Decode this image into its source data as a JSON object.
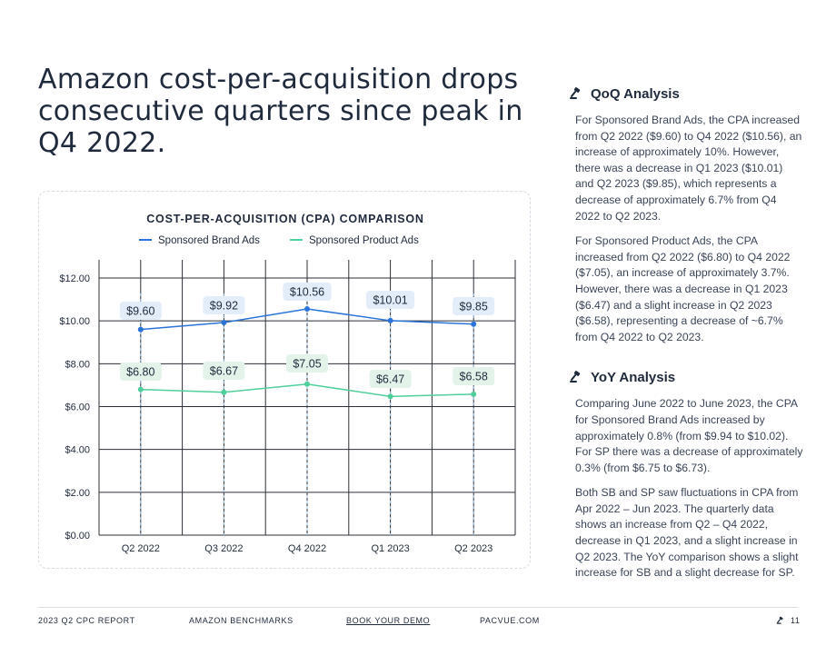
{
  "headline": "Amazon cost-per-acquisition drops consecutive quarters since peak in Q4 2022.",
  "chart_data": {
    "type": "line",
    "title": "COST-PER-ACQUISITION (CPA) COMPARISON",
    "categories": [
      "Q2 2022",
      "Q3 2022",
      "Q4 2022",
      "Q1 2023",
      "Q2 2023"
    ],
    "series": [
      {
        "name": "Sponsored Brand Ads",
        "color": "#2a73d9",
        "label_bg": "#e3edf9",
        "values": [
          9.6,
          9.92,
          10.56,
          10.01,
          9.85
        ],
        "labels": [
          "$9.60",
          "$9.92",
          "$10.56",
          "$10.01",
          "$9.85"
        ]
      },
      {
        "name": "Sponsored Product Ads",
        "color": "#4fcf9b",
        "label_bg": "#e3f3ea",
        "values": [
          6.8,
          6.67,
          7.05,
          6.47,
          6.58
        ],
        "labels": [
          "$6.80",
          "$6.67",
          "$7.05",
          "$6.47",
          "$6.58"
        ]
      }
    ],
    "ylim": [
      0,
      12
    ],
    "yticks": [
      0,
      2,
      4,
      6,
      8,
      10,
      12
    ],
    "ytick_labels": [
      "$0.00",
      "$2.00",
      "$4.00",
      "$6.00",
      "$8.00",
      "$10.00",
      "$12.00"
    ],
    "xlabel": "",
    "ylabel": "",
    "grid": true,
    "legend_position": "top-center"
  },
  "sections": [
    {
      "title": "QoQ Analysis",
      "paragraphs": [
        "For Sponsored Brand Ads, the CPA increased from Q2 2022 ($9.60) to Q4 2022 ($10.56), an increase of approximately 10%. However, there was a decrease in Q1 2023 ($10.01) and Q2 2023 ($9.85), which represents a decrease of approximately 6.7% from Q4 2022 to Q2 2023.",
        "For Sponsored Product Ads, the CPA increased from Q2 2022 ($6.80) to Q4 2022 ($7.05), an increase of approximately 3.7%. However, there was a decrease in Q1 2023 ($6.47) and a slight increase in Q2 2023 ($6.58), representing a decrease of ~6.7% from Q4 2022 to Q2 2023."
      ]
    },
    {
      "title": "YoY Analysis",
      "paragraphs": [
        "Comparing June 2022 to June 2023, the CPA for Sponsored Brand Ads increased by approximately 0.8% (from $9.94 to $10.02). For SP there was a decrease of approximately 0.3% (from $6.75 to $6.73).",
        "Both SB and SP saw fluctuations in CPA from Apr 2022 – Jun 2023. The quarterly data shows an increase from Q2 – Q4 2022, decrease in Q1 2023, and a slight increase in Q2 2023. The YoY comparison shows a slight increase for SB and a slight decrease for SP."
      ]
    }
  ],
  "footer": {
    "report": "2023 Q2 CPC REPORT",
    "section": "AMAZON BENCHMARKS",
    "cta": "BOOK YOUR DEMO",
    "site": "PACVUE.COM",
    "page": "11"
  },
  "colors": {
    "text": "#1f2a3c",
    "body": "#3a4558",
    "grid": "#2b2f36",
    "guide": "#9cc2ea"
  }
}
